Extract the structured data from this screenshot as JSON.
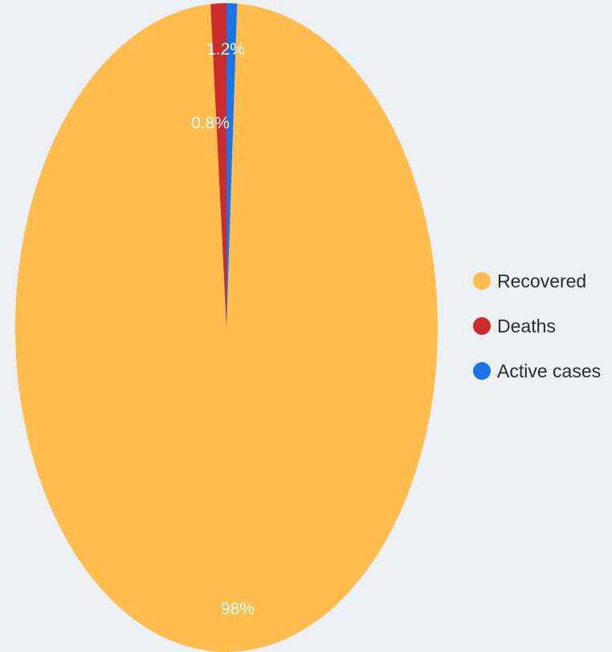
{
  "chart_data": {
    "type": "pie",
    "title": "",
    "categories": [
      "Recovered",
      "Deaths",
      "Active cases"
    ],
    "values": [
      98,
      1.2,
      0.8
    ],
    "data_labels": [
      "98%",
      "1.2%",
      "0.8%"
    ],
    "colors": [
      "#ffbd4e",
      "#cc2b2b",
      "#1a73e8"
    ],
    "legend_position": "right"
  },
  "legend": {
    "items": [
      {
        "label": "Recovered",
        "color": "#ffbd4e"
      },
      {
        "label": "Deaths",
        "color": "#cc2b2b"
      },
      {
        "label": "Active cases",
        "color": "#1a73e8"
      }
    ]
  }
}
